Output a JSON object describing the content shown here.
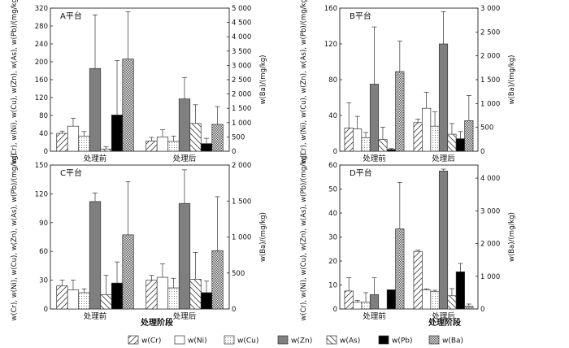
{
  "figure": {
    "xaxis_title": "处理阶段",
    "categories": [
      "处理前",
      "处理后"
    ],
    "legend": [
      {
        "key": "Cr",
        "label": "w(Cr)",
        "pattern": "diag-fwd"
      },
      {
        "key": "Ni",
        "label": "w(Ni)",
        "pattern": "white"
      },
      {
        "key": "Cu",
        "label": "w(Cu)",
        "pattern": "dots"
      },
      {
        "key": "Zn",
        "label": "w(Zn)",
        "pattern": "gray"
      },
      {
        "key": "As",
        "label": "w(As)",
        "pattern": "diag-back"
      },
      {
        "key": "Pb",
        "label": "w(Pb)",
        "pattern": "black"
      },
      {
        "key": "Ba",
        "label": "w(Ba)",
        "pattern": "checker"
      }
    ],
    "colors": {
      "gray": "#7f7f7f",
      "black": "#000000",
      "white": "#ffffff",
      "stroke": "#333333"
    }
  },
  "chart_data": [
    {
      "type": "bar",
      "panel": "A平台",
      "categories": [
        "处理前",
        "处理后"
      ],
      "ylabel_left": "w(Cr), w(Ni), w(Cu), w(Zn), w(As), w(Pb)/(mg/kg)",
      "ylabel_right": "w(Ba)/(mg/kg)",
      "ylim_left": [
        0,
        320
      ],
      "ylim_right": [
        0,
        5000
      ],
      "yticks_left": [
        "0",
        "40",
        "80",
        "120",
        "160",
        "200",
        "240",
        "280",
        "320"
      ],
      "yticks_right": [
        "0",
        "500",
        "1 000",
        "1 500",
        "2 000",
        "2 500",
        "3 000",
        "3 500",
        "4 000",
        "4 500",
        "5 000"
      ],
      "series": [
        {
          "name": "w(Cr)",
          "axis": "left",
          "values": [
            40,
            23
          ],
          "errors": [
            5,
            8
          ]
        },
        {
          "name": "w(Ni)",
          "axis": "left",
          "values": [
            56,
            32
          ],
          "errors": [
            18,
            16
          ]
        },
        {
          "name": "w(Cu)",
          "axis": "left",
          "values": [
            34,
            22
          ],
          "errors": [
            10,
            12
          ]
        },
        {
          "name": "w(Zn)",
          "axis": "left",
          "values": [
            185,
            117
          ],
          "errors": [
            120,
            48
          ]
        },
        {
          "name": "w(As)",
          "axis": "left",
          "values": [
            5,
            62
          ],
          "errors": [
            5,
            42
          ]
        },
        {
          "name": "w(Pb)",
          "axis": "left",
          "values": [
            81,
            17
          ],
          "errors": [
            122,
            12
          ]
        },
        {
          "name": "w(Ba)",
          "axis": "right",
          "values": [
            3220,
            940
          ],
          "errors": [
            1650,
            620
          ]
        }
      ]
    },
    {
      "type": "bar",
      "panel": "B平台",
      "categories": [
        "处理前",
        "处理后"
      ],
      "ylabel_left": "w(Cr), w(Ni), w(Cu), w(Zn), w(As), w(Pb)/(mg/kg)",
      "ylabel_right": "w(Ba)/(mg/kg)",
      "ylim_left": [
        0,
        160
      ],
      "ylim_right": [
        0,
        3000
      ],
      "yticks_left": [
        "0",
        "40",
        "80",
        "120",
        "160"
      ],
      "yticks_right": [
        "0",
        "500",
        "1 000",
        "1 500",
        "2 000",
        "2 500",
        "3 000"
      ],
      "series": [
        {
          "name": "w(Cr)",
          "axis": "left",
          "values": [
            26,
            32
          ],
          "errors": [
            28,
            4
          ]
        },
        {
          "name": "w(Ni)",
          "axis": "left",
          "values": [
            25,
            48
          ],
          "errors": [
            14,
            18
          ]
        },
        {
          "name": "w(Cu)",
          "axis": "left",
          "values": [
            15,
            28
          ],
          "errors": [
            6,
            16
          ]
        },
        {
          "name": "w(Zn)",
          "axis": "left",
          "values": [
            75,
            120
          ],
          "errors": [
            64,
            36
          ]
        },
        {
          "name": "w(As)",
          "axis": "left",
          "values": [
            13,
            19
          ],
          "errors": [
            14,
            12
          ]
        },
        {
          "name": "w(Pb)",
          "axis": "left",
          "values": [
            2,
            14
          ],
          "errors": [
            1,
            8
          ]
        },
        {
          "name": "w(Ba)",
          "axis": "right",
          "values": [
            1670,
            640
          ],
          "errors": [
            640,
            530
          ]
        }
      ]
    },
    {
      "type": "bar",
      "panel": "C平台",
      "categories": [
        "处理前",
        "处理后"
      ],
      "ylabel_left": "w(Cr), w(Ni), w(Cu), w(Zn), w(As), w(Pb)/(mg/kg)",
      "ylabel_right": "w(Ba)/(mg/kg)",
      "ylim_left": [
        0,
        150
      ],
      "ylim_right": [
        0,
        2000
      ],
      "yticks_left": [
        "0",
        "30",
        "60",
        "90",
        "120",
        "150"
      ],
      "yticks_right": [
        "0",
        "500",
        "1 000",
        "1 500",
        "2 000"
      ],
      "series": [
        {
          "name": "w(Cr)",
          "axis": "left",
          "values": [
            24,
            30
          ],
          "errors": [
            6,
            5
          ]
        },
        {
          "name": "w(Ni)",
          "axis": "left",
          "values": [
            20,
            33
          ],
          "errors": [
            10,
            14
          ]
        },
        {
          "name": "w(Cu)",
          "axis": "left",
          "values": [
            17,
            22
          ],
          "errors": [
            4,
            10
          ]
        },
        {
          "name": "w(Zn)",
          "axis": "left",
          "values": [
            112,
            110
          ],
          "errors": [
            9,
            35
          ]
        },
        {
          "name": "w(As)",
          "axis": "left",
          "values": [
            15,
            31
          ],
          "errors": [
            20,
            28
          ]
        },
        {
          "name": "w(Pb)",
          "axis": "left",
          "values": [
            27,
            17
          ],
          "errors": [
            22,
            12
          ]
        },
        {
          "name": "w(Ba)",
          "axis": "right",
          "values": [
            1030,
            810
          ],
          "errors": [
            740,
            750
          ]
        }
      ]
    },
    {
      "type": "bar",
      "panel": "D平台",
      "categories": [
        "处理前",
        "处理后"
      ],
      "ylabel_left": "w(Cr), w(Ni), w(Cu), w(Zn), w(As), w(Pb)/(mg/kg)",
      "ylabel_right": "w(Ba)/(mg/kg)",
      "ylim_left": [
        0,
        60
      ],
      "ylim_right": [
        0,
        4400
      ],
      "yticks_left": [
        "0",
        "10",
        "20",
        "30",
        "40",
        "50",
        "60"
      ],
      "yticks_right": [
        "0",
        "1 000",
        "2 000",
        "3 000",
        "4 000"
      ],
      "series": [
        {
          "name": "w(Cr)",
          "axis": "left",
          "values": [
            7.5,
            24
          ],
          "errors": [
            5.5,
            0.5
          ]
        },
        {
          "name": "w(Ni)",
          "axis": "left",
          "values": [
            2.8,
            8
          ],
          "errors": [
            0.8,
            0.4
          ]
        },
        {
          "name": "w(Cu)",
          "axis": "left",
          "values": [
            2.8,
            7.2
          ],
          "errors": [
            4,
            0.6
          ]
        },
        {
          "name": "w(Zn)",
          "axis": "left",
          "values": [
            6,
            57.5
          ],
          "errors": [
            7,
            0.8
          ]
        },
        {
          "name": "w(As)",
          "axis": "left",
          "values": [
            0,
            5.5
          ],
          "errors": [
            0,
            3
          ]
        },
        {
          "name": "w(Pb)",
          "axis": "left",
          "values": [
            8,
            15.5
          ],
          "errors": [
            0,
            3.5
          ]
        },
        {
          "name": "w(Ba)",
          "axis": "right",
          "values": [
            2450,
            80
          ],
          "errors": [
            1420,
            70
          ]
        }
      ]
    }
  ]
}
